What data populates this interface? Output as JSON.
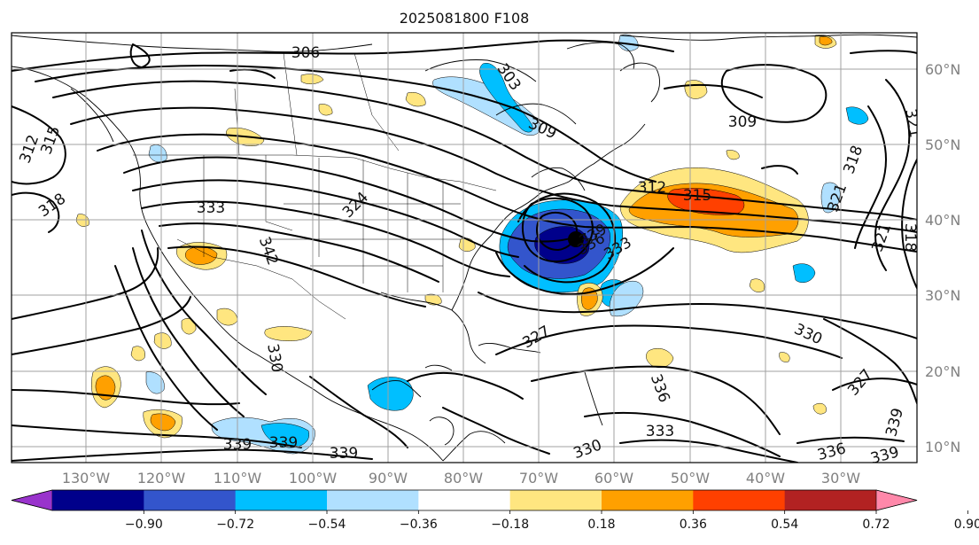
{
  "title": "2025081800 F108",
  "latitude_labels": [
    "60°N",
    "50°N",
    "40°N",
    "30°N",
    "20°N",
    "10°N"
  ],
  "longitude_labels": [
    "130°W",
    "120°W",
    "110°W",
    "100°W",
    "90°W",
    "80°W",
    "70°W",
    "60°W",
    "50°W",
    "40°W",
    "30°W"
  ],
  "colorbar": {
    "tick_labels": [
      "−0.90",
      "−0.72",
      "−0.54",
      "−0.36",
      "−0.18",
      "0.18",
      "0.36",
      "0.54",
      "0.72",
      "0.90"
    ],
    "colors": [
      "#9933cc",
      "#00008b",
      "#3355cc",
      "#00bfff",
      "#b0e0ff",
      "#ffffff",
      "#ffe680",
      "#ffa000",
      "#ff4000",
      "#b22222",
      "#ff88aa"
    ],
    "extend": "both"
  },
  "contour_labels": {
    "c306": "306",
    "c303": "303",
    "c309a": "309",
    "c309b": "309",
    "c312a": "312",
    "c312b": "312",
    "c315a": "315",
    "c315b": "315",
    "c318a": "318",
    "c318b": "318",
    "c318c": "318",
    "c321a": "321",
    "c321b": "321",
    "c321c": "321",
    "c324": "324",
    "c333a": "333",
    "c333b": "333",
    "c333c": "333",
    "c336a": "336",
    "c336b": "336",
    "c336c": "336",
    "c339a": "339",
    "c339b": "339",
    "c339c": "339",
    "c339d": "339",
    "c339e": "339",
    "c342": "342",
    "c327a": "327",
    "c327b": "327",
    "c330a": "330",
    "c330b": "330",
    "c330c": "330",
    "c339f": "339"
  },
  "features": {
    "low_center_marker": "black-dot"
  }
}
